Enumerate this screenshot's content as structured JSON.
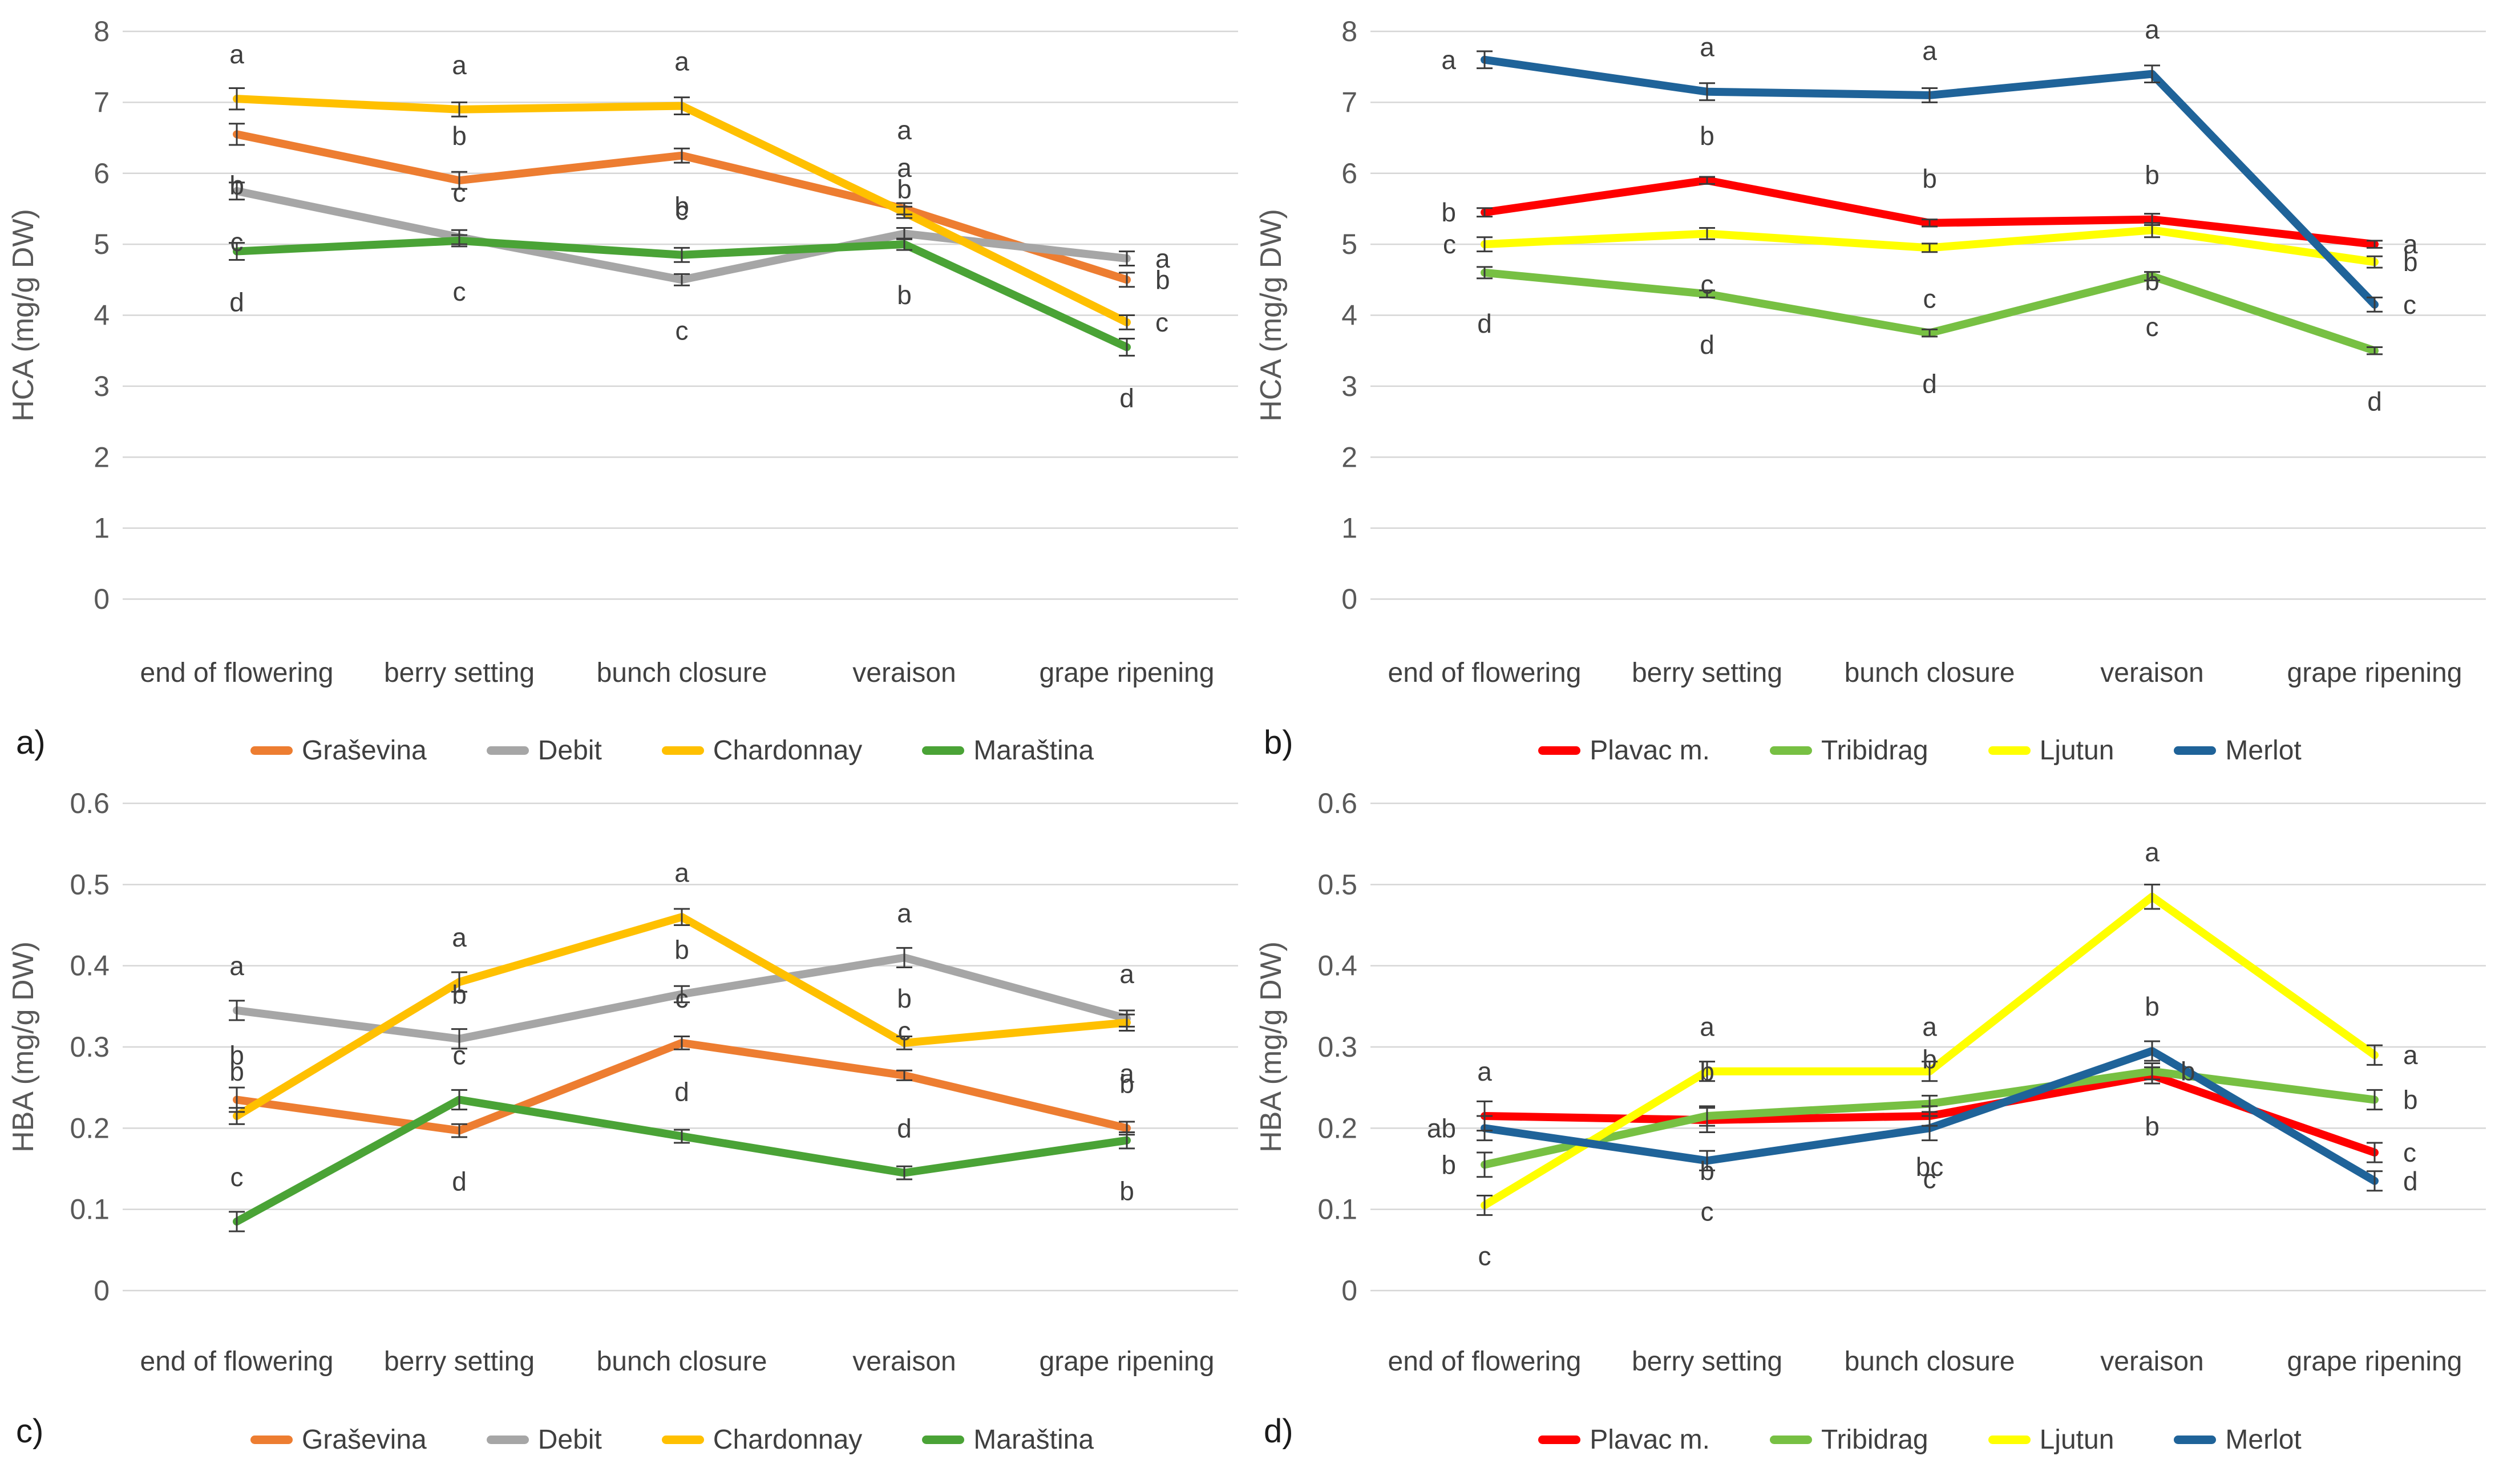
{
  "figure": {
    "background": "#ffffff",
    "gridline_color": "#d6d6d6",
    "tick_label_color": "#595959",
    "category_label_color": "#404040",
    "letter_color": "#3f3f3f",
    "error_bar_color": "#3a3a3a"
  },
  "chart_data": [
    {
      "id": "a",
      "panel_label": "a)",
      "type": "line",
      "ylabel": "HCA (mg/g DW)",
      "ylim": [
        0,
        8
      ],
      "yticks": [
        "0",
        "1",
        "2",
        "3",
        "4",
        "5",
        "6",
        "7",
        "8"
      ],
      "grid": true,
      "legend_position": "bottom",
      "categories": [
        "end of flowering",
        "berry setting",
        "bunch closure",
        "veraison",
        "grape ripening"
      ],
      "series": [
        {
          "name": "Graševina",
          "color": "#ED7D31",
          "values": [
            6.55,
            5.9,
            6.25,
            5.5,
            4.5
          ],
          "errors": [
            0.15,
            0.12,
            0.1,
            0.08,
            0.1
          ],
          "letters": [
            "b",
            "b",
            "b",
            "a",
            "b"
          ],
          "letter_pos": [
            "below",
            "above",
            "below",
            "above2",
            "right"
          ]
        },
        {
          "name": "Debit",
          "color": "#A6A6A6",
          "values": [
            5.75,
            5.1,
            4.5,
            5.15,
            4.8
          ],
          "errors": [
            0.12,
            0.1,
            0.08,
            0.08,
            0.1
          ],
          "letters": [
            "c",
            "c",
            "c",
            "b",
            "a"
          ],
          "letter_pos": [
            "below",
            "above",
            "below",
            "above",
            "right"
          ]
        },
        {
          "name": "Chardonnay",
          "color": "#FFC000",
          "values": [
            7.05,
            6.9,
            6.95,
            5.45,
            3.9
          ],
          "errors": [
            0.15,
            0.1,
            0.12,
            0.08,
            0.1
          ],
          "letters": [
            "a",
            "a",
            "a",
            "a",
            "c"
          ],
          "letter_pos": [
            "above",
            "above",
            "above",
            "above",
            "right"
          ]
        },
        {
          "name": "Maraština",
          "color": "#4AA336",
          "values": [
            4.9,
            5.05,
            4.85,
            5.0,
            3.55
          ],
          "errors": [
            0.12,
            0.08,
            0.1,
            0.08,
            0.12
          ],
          "letters": [
            "d",
            "c",
            "c",
            "b",
            "d"
          ],
          "letter_pos": [
            "below",
            "below",
            "above",
            "below",
            "below"
          ]
        }
      ]
    },
    {
      "id": "b",
      "panel_label": "b)",
      "type": "line",
      "ylabel": "HCA (mg/g DW)",
      "ylim": [
        0,
        8
      ],
      "yticks": [
        "0",
        "1",
        "2",
        "3",
        "4",
        "5",
        "6",
        "7",
        "8"
      ],
      "grid": true,
      "legend_position": "bottom",
      "categories": [
        "end of flowering",
        "berry setting",
        "bunch closure",
        "veraison",
        "grape ripening"
      ],
      "series": [
        {
          "name": "Plavac m.",
          "color": "#FF0000",
          "values": [
            5.45,
            5.9,
            5.3,
            5.35,
            5.0
          ],
          "errors": [
            0.06,
            0.05,
            0.05,
            0.08,
            0.05
          ],
          "letters": [
            "b",
            "b",
            "b",
            "b",
            "a"
          ],
          "letter_pos": [
            "left",
            "above",
            "above",
            "above",
            "right"
          ]
        },
        {
          "name": "Tribidrag",
          "color": "#77C043",
          "values": [
            4.6,
            4.3,
            3.75,
            4.55,
            3.5
          ],
          "errors": [
            0.08,
            0.05,
            0.05,
            0.06,
            0.05
          ],
          "letters": [
            "d",
            "d",
            "d",
            "c",
            "d"
          ],
          "letter_pos": [
            "below",
            "below",
            "below",
            "below",
            "below"
          ]
        },
        {
          "name": "Ljutun",
          "color": "#FFFF00",
          "values": [
            5.0,
            5.15,
            4.95,
            5.2,
            4.75
          ],
          "errors": [
            0.1,
            0.08,
            0.06,
            0.1,
            0.08
          ],
          "letters": [
            "c",
            "c",
            "c",
            "b",
            "b"
          ],
          "letter_pos": [
            "left",
            "below",
            "below",
            "below",
            "right"
          ]
        },
        {
          "name": "Merlot",
          "color": "#1F6399",
          "values": [
            7.6,
            7.15,
            7.1,
            7.4,
            4.15
          ],
          "errors": [
            0.12,
            0.12,
            0.1,
            0.12,
            0.1
          ],
          "letters": [
            "a",
            "a",
            "a",
            "a",
            "c"
          ],
          "letter_pos": [
            "left",
            "above",
            "above",
            "above",
            "right"
          ]
        }
      ]
    },
    {
      "id": "c",
      "panel_label": "c)",
      "type": "line",
      "ylabel": "HBA (mg/g DW)",
      "ylim": [
        0,
        0.6
      ],
      "yticks": [
        "0",
        "0.1",
        "0.2",
        "0.3",
        "0.4",
        "0.5",
        "0.6"
      ],
      "grid": true,
      "legend_position": "bottom",
      "categories": [
        "end of flowering",
        "berry setting",
        "bunch closure",
        "veraison",
        "grape ripening"
      ],
      "series": [
        {
          "name": "Graševina",
          "color": "#ED7D31",
          "values": [
            0.235,
            0.197,
            0.305,
            0.265,
            0.2
          ],
          "errors": [
            0.015,
            0.008,
            0.008,
            0.006,
            0.008
          ],
          "letters": [
            "b",
            "d",
            "c",
            "c",
            "b"
          ],
          "letter_pos": [
            "above",
            "below",
            "above",
            "above",
            "above"
          ]
        },
        {
          "name": "Debit",
          "color": "#A6A6A6",
          "values": [
            0.345,
            0.31,
            0.365,
            0.41,
            0.335
          ],
          "errors": [
            0.012,
            0.012,
            0.01,
            0.012,
            0.01
          ],
          "letters": [
            "a",
            "b",
            "b",
            "a",
            "a"
          ],
          "letter_pos": [
            "above",
            "above",
            "above",
            "above",
            "above"
          ]
        },
        {
          "name": "Chardonnay",
          "color": "#FFC000",
          "values": [
            0.215,
            0.38,
            0.46,
            0.305,
            0.33
          ],
          "errors": [
            0.01,
            0.012,
            0.01,
            0.008,
            0.01
          ],
          "letters": [
            "b",
            "a",
            "a",
            "b",
            "a"
          ],
          "letter_pos": [
            "above",
            "above",
            "above",
            "above",
            "below"
          ]
        },
        {
          "name": "Maraština",
          "color": "#4AA336",
          "values": [
            0.085,
            0.235,
            0.19,
            0.145,
            0.185
          ],
          "errors": [
            0.012,
            0.012,
            0.008,
            0.008,
            0.01
          ],
          "letters": [
            "c",
            "c",
            "d",
            "d",
            "b"
          ],
          "letter_pos": [
            "above",
            "above",
            "above",
            "above",
            "below"
          ]
        }
      ]
    },
    {
      "id": "d",
      "panel_label": "d)",
      "type": "line",
      "ylabel": "HBA (mg/g DW)",
      "ylim": [
        0,
        0.6
      ],
      "yticks": [
        "0",
        "0.1",
        "0.2",
        "0.3",
        "0.4",
        "0.5",
        "0.6"
      ],
      "grid": true,
      "legend_position": "bottom",
      "categories": [
        "end of flowering",
        "berry setting",
        "bunch closure",
        "veraison",
        "grape ripening"
      ],
      "series": [
        {
          "name": "Plavac m.",
          "color": "#FF0000",
          "values": [
            0.215,
            0.21,
            0.215,
            0.265,
            0.17
          ],
          "errors": [
            0.018,
            0.015,
            0.012,
            0.01,
            0.012
          ],
          "letters": [
            "a",
            "b",
            "bc",
            "b",
            "c"
          ],
          "letter_pos": [
            "above",
            "below",
            "below",
            "below",
            "right"
          ]
        },
        {
          "name": "Tribidrag",
          "color": "#77C043",
          "values": [
            0.155,
            0.215,
            0.23,
            0.27,
            0.235
          ],
          "errors": [
            0.015,
            0.012,
            0.01,
            0.01,
            0.012
          ],
          "letters": [
            "b",
            "b",
            "b",
            "b",
            "b"
          ],
          "letter_pos": [
            "left",
            "above",
            "above",
            "right",
            "right"
          ]
        },
        {
          "name": "Ljutun",
          "color": "#FFFF00",
          "values": [
            0.105,
            0.27,
            0.27,
            0.485,
            0.29
          ],
          "errors": [
            0.012,
            0.012,
            0.012,
            0.015,
            0.012
          ],
          "letters": [
            "c",
            "a",
            "a",
            "a",
            "a"
          ],
          "letter_pos": [
            "below",
            "above",
            "above",
            "above",
            "right"
          ]
        },
        {
          "name": "Merlot",
          "color": "#1F6399",
          "values": [
            0.2,
            0.16,
            0.2,
            0.295,
            0.135
          ],
          "errors": [
            0.015,
            0.012,
            0.015,
            0.012,
            0.012
          ],
          "letters": [
            "ab",
            "c",
            "c",
            "b",
            "d"
          ],
          "letter_pos": [
            "left",
            "below",
            "below",
            "above",
            "right"
          ]
        }
      ]
    }
  ]
}
